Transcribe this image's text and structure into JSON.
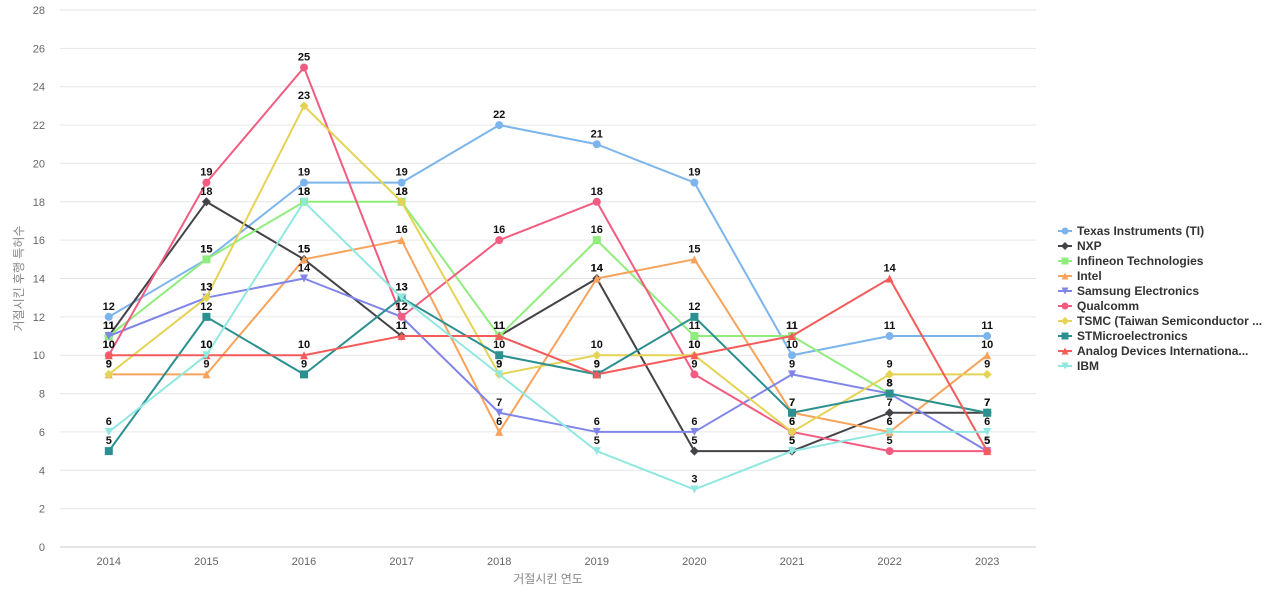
{
  "chart_data": {
    "type": "line",
    "xlabel": "거절시킨 연도",
    "ylabel": "거절시킨 후행 특허수",
    "ylim": [
      0,
      28
    ],
    "yticks": [
      0,
      2,
      4,
      6,
      8,
      10,
      12,
      14,
      16,
      18,
      20,
      22,
      24,
      26,
      28
    ],
    "grid": true,
    "legend_position": "right",
    "categories": [
      "2014",
      "2015",
      "2016",
      "2017",
      "2018",
      "2019",
      "2020",
      "2021",
      "2022",
      "2023"
    ],
    "series": [
      {
        "name": "Texas Instruments (TI)",
        "color": "#7cb5ec",
        "marker": "circle",
        "values": [
          12,
          15,
          19,
          19,
          22,
          21,
          19,
          10,
          11,
          11
        ]
      },
      {
        "name": "NXP",
        "color": "#434348",
        "marker": "diamond",
        "values": [
          11,
          18,
          15,
          11,
          11,
          14,
          5,
          5,
          7,
          7
        ]
      },
      {
        "name": "Infineon Technologies",
        "color": "#90ed7d",
        "marker": "square",
        "values": [
          11,
          15,
          18,
          18,
          11,
          16,
          11,
          11,
          8,
          7
        ]
      },
      {
        "name": "Intel",
        "color": "#f7a35c",
        "marker": "triangle",
        "values": [
          9,
          9,
          15,
          16,
          6,
          14,
          15,
          7,
          6,
          10
        ]
      },
      {
        "name": "Samsung Electronics",
        "color": "#8085e9",
        "marker": "triangle-down",
        "values": [
          11,
          13,
          14,
          12,
          7,
          6,
          6,
          9,
          8,
          5
        ]
      },
      {
        "name": "Qualcomm",
        "color": "#f15c80",
        "marker": "circle",
        "values": [
          10,
          19,
          25,
          12,
          16,
          18,
          9,
          6,
          5,
          5
        ]
      },
      {
        "name": "TSMC (Taiwan Semiconductor ...",
        "color": "#e4d354",
        "marker": "diamond",
        "values": [
          9,
          13,
          23,
          18,
          9,
          10,
          10,
          6,
          9,
          9
        ]
      },
      {
        "name": "STMicroelectronics",
        "color": "#2b908f",
        "marker": "square",
        "values": [
          5,
          12,
          9,
          13,
          10,
          9,
          12,
          7,
          8,
          7
        ]
      },
      {
        "name": "Analog Devices Internationa...",
        "color": "#f45b5b",
        "marker": "triangle",
        "values": [
          10,
          10,
          10,
          11,
          11,
          9,
          10,
          11,
          14,
          5
        ]
      },
      {
        "name": "IBM",
        "color": "#91e8e1",
        "marker": "triangle-down",
        "values": [
          6,
          10,
          18,
          13,
          9,
          5,
          3,
          5,
          6,
          6
        ]
      }
    ]
  }
}
